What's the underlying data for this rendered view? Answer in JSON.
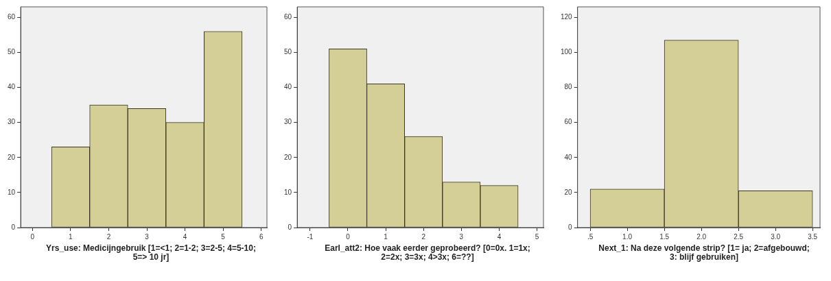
{
  "chart_data": [
    {
      "type": "histogram",
      "xlabel": "Yrs_use: Medicijngebruik [1=<1; 2=1-2; 3=2-5; 4=5-10; 5=> 10 jr]",
      "bins": [
        0.5,
        1.5,
        2.5,
        3.5,
        4.5,
        5.5
      ],
      "values": [
        23,
        35,
        34,
        30,
        56
      ],
      "color": "#d3cf96",
      "xlim": [
        -0.31,
        6.15
      ],
      "xticks": [
        0,
        1,
        2,
        3,
        4,
        5,
        6
      ],
      "ylim": [
        0,
        63
      ],
      "yticks": [
        0,
        10,
        20,
        30,
        40,
        50,
        60
      ],
      "grid": false,
      "legend": false
    },
    {
      "type": "histogram",
      "xlabel": "Earl_att2: Hoe vaak eerder geprobeerd? [0=0x. 1=1x; 2=2x; 3=3x; 4>3x; 6=??]",
      "bins": [
        -0.5,
        0.5,
        1.5,
        2.5,
        3.5,
        4.5
      ],
      "values": [
        51,
        41,
        26,
        13,
        12
      ],
      "color": "#d3cf96",
      "xlim": [
        -1.34,
        5.17
      ],
      "xticks": [
        -1,
        0,
        1,
        2,
        3,
        4,
        5
      ],
      "ylim": [
        0,
        63
      ],
      "yticks": [
        0,
        10,
        20,
        30,
        40,
        50,
        60
      ],
      "grid": false,
      "legend": false
    },
    {
      "type": "histogram",
      "xlabel": "Next_1: Na deze volgende strip? [1= ja; 2=afgebouwd; 3: blijf gebruiken]",
      "bins": [
        0.5,
        1.5,
        2.5,
        3.5
      ],
      "values": [
        22,
        107,
        21
      ],
      "color": "#d3cf96",
      "xlim": [
        0.33,
        3.6
      ],
      "xticks": [
        {
          "value": 0.5,
          "label": ".5"
        },
        {
          "value": 1,
          "label": "1.0"
        },
        {
          "value": 1.5,
          "label": "1.5"
        },
        {
          "value": 2,
          "label": "2.0"
        },
        {
          "value": 2.5,
          "label": "2.5"
        },
        {
          "value": 3,
          "label": "3.0"
        },
        {
          "value": 3.5,
          "label": "3.5"
        }
      ],
      "ylim": [
        0,
        126
      ],
      "yticks": [
        0,
        20,
        40,
        60,
        80,
        100,
        120
      ],
      "grid": false,
      "legend": false
    }
  ]
}
